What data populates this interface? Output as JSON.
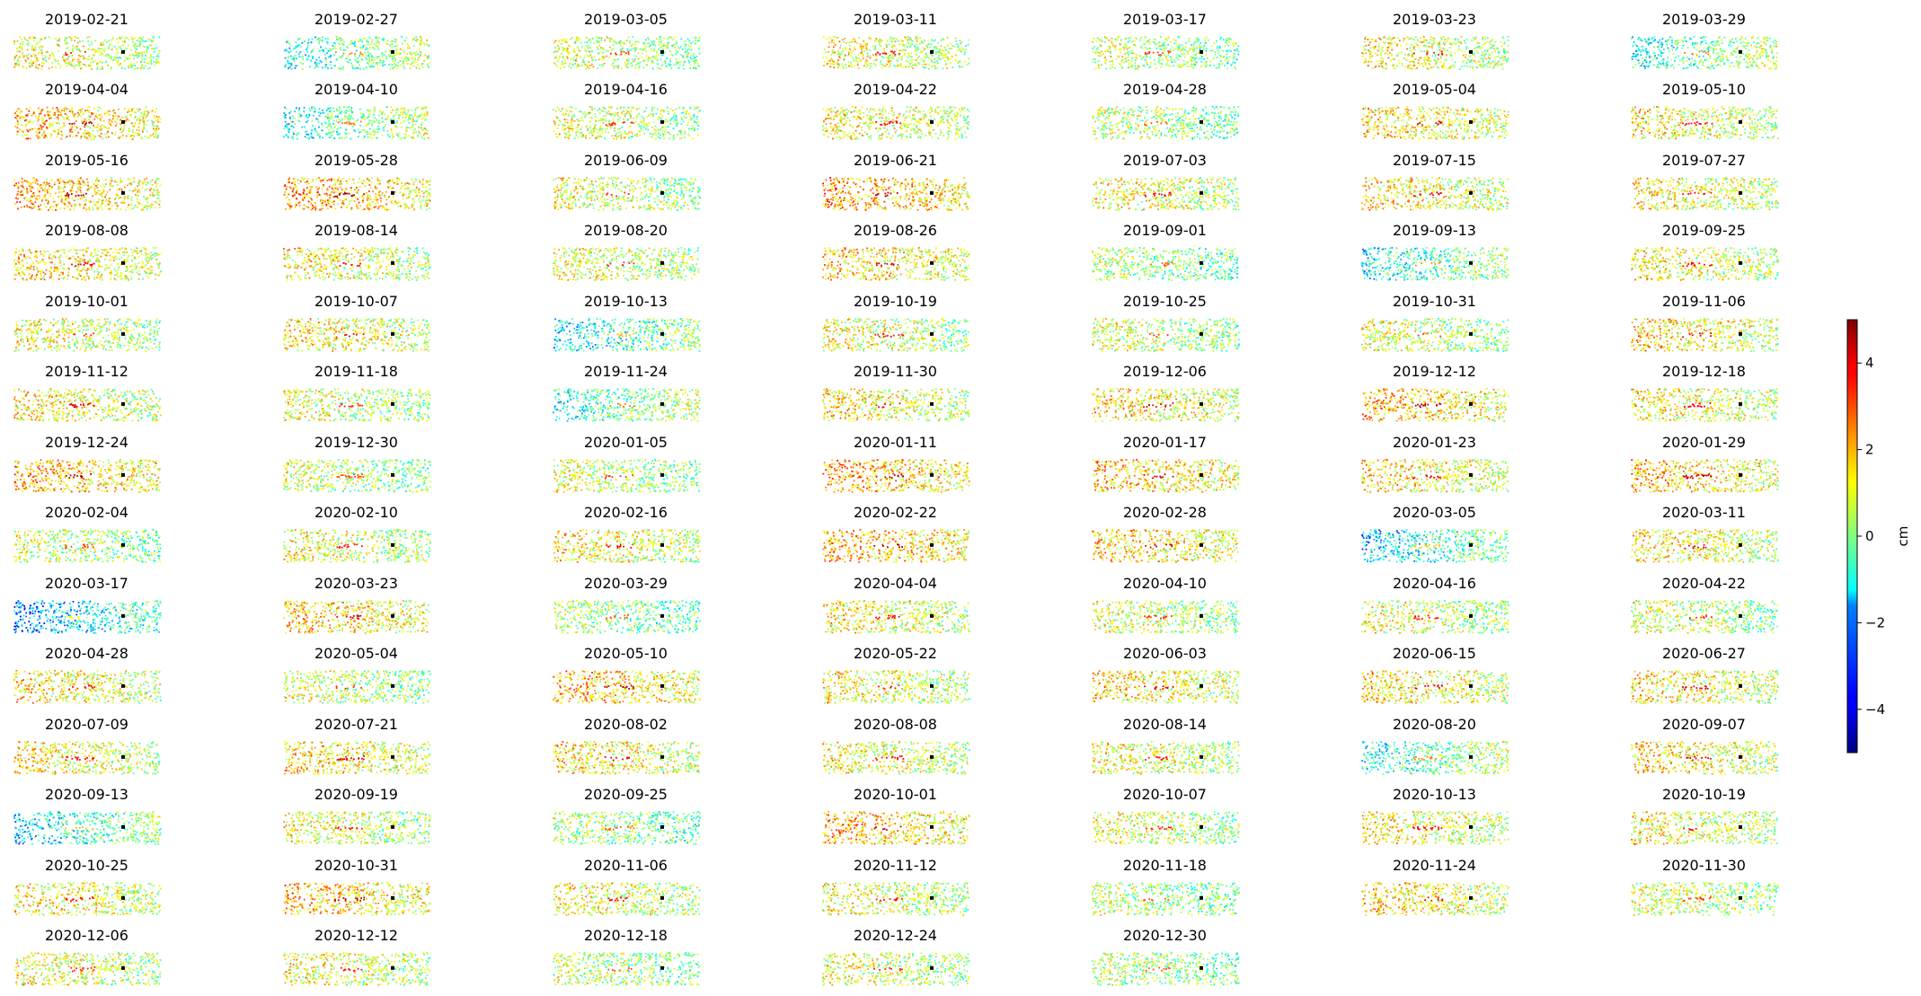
{
  "chart_data": {
    "type": "scatter",
    "description_kind": "small-multiples displacement maps",
    "dates": [
      "2019-02-21",
      "2019-02-27",
      "2019-03-05",
      "2019-03-11",
      "2019-03-17",
      "2019-03-23",
      "2019-03-29",
      "2019-04-04",
      "2019-04-10",
      "2019-04-16",
      "2019-04-22",
      "2019-04-28",
      "2019-05-04",
      "2019-05-10",
      "2019-05-16",
      "2019-05-28",
      "2019-06-09",
      "2019-06-21",
      "2019-07-03",
      "2019-07-15",
      "2019-07-27",
      "2019-08-08",
      "2019-08-14",
      "2019-08-20",
      "2019-08-26",
      "2019-09-01",
      "2019-09-13",
      "2019-09-25",
      "2019-10-01",
      "2019-10-07",
      "2019-10-13",
      "2019-10-19",
      "2019-10-25",
      "2019-10-31",
      "2019-11-06",
      "2019-11-12",
      "2019-11-18",
      "2019-11-24",
      "2019-11-30",
      "2019-12-06",
      "2019-12-12",
      "2019-12-18",
      "2019-12-24",
      "2019-12-30",
      "2020-01-05",
      "2020-01-11",
      "2020-01-17",
      "2020-01-23",
      "2020-01-29",
      "2020-02-04",
      "2020-02-10",
      "2020-02-16",
      "2020-02-22",
      "2020-02-28",
      "2020-03-05",
      "2020-03-11",
      "2020-03-17",
      "2020-03-23",
      "2020-03-29",
      "2020-04-04",
      "2020-04-10",
      "2020-04-16",
      "2020-04-22",
      "2020-04-28",
      "2020-05-04",
      "2020-05-10",
      "2020-05-22",
      "2020-06-03",
      "2020-06-15",
      "2020-06-27",
      "2020-07-09",
      "2020-07-21",
      "2020-08-02",
      "2020-08-08",
      "2020-08-14",
      "2020-08-20",
      "2020-09-07",
      "2020-09-13",
      "2020-09-19",
      "2020-09-25",
      "2020-10-01",
      "2020-10-07",
      "2020-10-13",
      "2020-10-19",
      "2020-10-25",
      "2020-10-31",
      "2020-11-06",
      "2020-11-12",
      "2020-11-18",
      "2020-11-24",
      "2020-11-30",
      "2020-12-06",
      "2020-12-12",
      "2020-12-18",
      "2020-12-24",
      "2020-12-30"
    ],
    "panel_bias": [
      0.8,
      -0.3,
      0.5,
      0.8,
      0.3,
      0.9,
      -0.2,
      1.6,
      -0.2,
      0.6,
      0.9,
      0.2,
      1.2,
      0.9,
      1.6,
      1.8,
      0.6,
      1.8,
      0.9,
      1.1,
      1.0,
      1.2,
      0.9,
      0.7,
      1.4,
      0.0,
      -0.5,
      1.0,
      0.7,
      1.1,
      -0.8,
      0.7,
      0.5,
      0.5,
      1.2,
      1.0,
      0.6,
      -0.2,
      1.1,
      1.2,
      1.6,
      1.0,
      1.7,
      0.3,
      0.4,
      1.8,
      1.5,
      1.2,
      1.5,
      0.3,
      0.8,
      1.0,
      1.8,
      1.4,
      -1.0,
      1.1,
      -1.5,
      1.5,
      0.0,
      1.0,
      0.5,
      0.7,
      0.5,
      1.1,
      0.5,
      1.6,
      0.9,
      1.2,
      1.2,
      1.1,
      1.0,
      1.2,
      1.2,
      0.9,
      0.8,
      -0.3,
      1.2,
      -0.8,
      0.7,
      0.0,
      1.6,
      0.6,
      1.0,
      0.9,
      1.0,
      1.6,
      0.9,
      0.8,
      0.2,
      1.2,
      0.5,
      0.7,
      0.8,
      0.3,
      0.7,
      0.2
    ],
    "colorbar": {
      "label": "cm",
      "range": [
        -5,
        5
      ],
      "ticks": [
        -4,
        -2,
        0,
        2,
        4
      ],
      "tick_labels": [
        "−4",
        "−2",
        "0",
        "2",
        "4"
      ],
      "colormap": "jet"
    },
    "reference_point_color": "#000000",
    "grid": false,
    "axes": "off"
  }
}
